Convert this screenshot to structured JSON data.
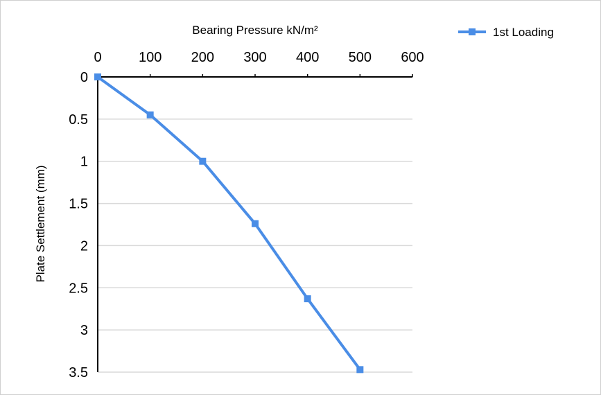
{
  "chart_data": {
    "type": "line",
    "xlabel": "Bearing Pressure kN/m²",
    "ylabel": "Plate Settlement (mm)",
    "xlim": [
      0,
      600
    ],
    "ylim": [
      0,
      3.5
    ],
    "x_axis_position": "top",
    "y_axis_reversed": true,
    "x_ticks": [
      "0",
      "100",
      "200",
      "300",
      "400",
      "500",
      "600"
    ],
    "y_ticks": [
      "0",
      "0.5",
      "1",
      "1.5",
      "2",
      "2.5",
      "3",
      "3.5"
    ],
    "grid": "horizontal",
    "legend_position": "top-right",
    "series": [
      {
        "name": "1st Loading",
        "color": "#4a8de6",
        "marker": "square",
        "x": [
          0,
          100,
          200,
          300,
          400,
          500
        ],
        "y": [
          0,
          0.45,
          1.0,
          1.74,
          2.63,
          3.47
        ]
      }
    ]
  }
}
